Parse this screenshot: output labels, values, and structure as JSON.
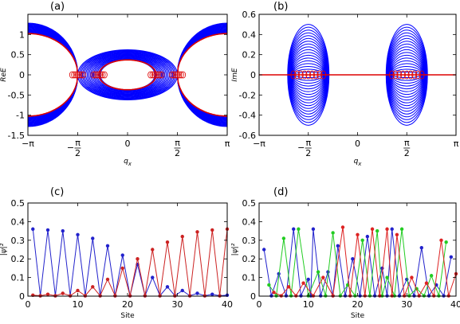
{
  "panels": [
    {
      "label": "(a)",
      "chart_data": {
        "type": "line",
        "title": "",
        "xlabel": "q_x",
        "ylabel": "ReE",
        "xlim": [
          -3.1416,
          3.1416
        ],
        "ylim": [
          -1.5,
          1.5
        ],
        "xticks": [
          {
            "value": -3.1416,
            "label": "−π"
          },
          {
            "value": -1.5708,
            "label": "−π/2"
          },
          {
            "value": 0,
            "label": "0"
          },
          {
            "value": 1.5708,
            "label": "π/2"
          },
          {
            "value": 3.1416,
            "label": "π"
          }
        ],
        "yticks": [
          -1.5,
          -1,
          -0.5,
          0,
          0.5,
          1
        ],
        "description_series": [
          {
            "name": "bands",
            "color": "#0000ff"
          },
          {
            "name": "edge",
            "color": "#dd0000"
          }
        ],
        "curves": {
          "outer_max": 1.28,
          "ring_inner": 0.37,
          "ring_outer": 0.62,
          "exceptional_points": [
            -1.5708,
            1.5708
          ]
        }
      }
    },
    {
      "label": "(b)",
      "chart_data": {
        "type": "line",
        "title": "",
        "xlabel": "q_x",
        "ylabel": "ImE",
        "xlim": [
          -3.1416,
          3.1416
        ],
        "ylim": [
          -0.6,
          0.6
        ],
        "xticks": [
          {
            "value": -3.1416,
            "label": "−π"
          },
          {
            "value": -1.5708,
            "label": "−π/2"
          },
          {
            "value": 0,
            "label": "0"
          },
          {
            "value": 1.5708,
            "label": "π/2"
          },
          {
            "value": 3.1416,
            "label": "π"
          }
        ],
        "yticks": [
          -0.6,
          -0.4,
          -0.2,
          0,
          0.2,
          0.4,
          0.6
        ],
        "curves": {
          "ellipse_centers": [
            -1.5708,
            1.5708
          ],
          "ellipse_halfwidth": 0.66,
          "ellipse_max": 0.5
        }
      }
    },
    {
      "label": "(c)",
      "chart_data": {
        "type": "line",
        "title": "",
        "xlabel": "Site",
        "ylabel": "|ψ|²",
        "xlim": [
          0,
          40
        ],
        "ylim": [
          0,
          0.5
        ],
        "xticks": [
          0,
          10,
          20,
          30,
          40
        ],
        "yticks": [
          0,
          0.1,
          0.2,
          0.3,
          0.4,
          0.5
        ],
        "series": [
          {
            "color": "#2222cc",
            "peaks": [
              [
                1,
                0.36
              ],
              [
                4,
                0.355
              ],
              [
                7,
                0.35
              ],
              [
                10,
                0.33
              ],
              [
                13,
                0.31
              ],
              [
                16,
                0.27
              ],
              [
                19,
                0.22
              ],
              [
                22,
                0.17
              ],
              [
                25,
                0.1
              ],
              [
                28,
                0.05
              ],
              [
                31,
                0.03
              ],
              [
                34,
                0.015
              ],
              [
                37,
                0.01
              ],
              [
                40,
                0.005
              ]
            ]
          },
          {
            "color": "#cc2222",
            "peaks": [
              [
                1,
                0.005
              ],
              [
                4,
                0.01
              ],
              [
                7,
                0.015
              ],
              [
                10,
                0.03
              ],
              [
                13,
                0.05
              ],
              [
                16,
                0.09
              ],
              [
                19,
                0.15
              ],
              [
                22,
                0.2
              ],
              [
                25,
                0.25
              ],
              [
                28,
                0.29
              ],
              [
                31,
                0.32
              ],
              [
                34,
                0.345
              ],
              [
                37,
                0.355
              ],
              [
                40,
                0.36
              ]
            ]
          }
        ]
      }
    },
    {
      "label": "(d)",
      "chart_data": {
        "type": "line",
        "title": "",
        "xlabel": "Site",
        "ylabel": "|ψ|²",
        "xlim": [
          0,
          40
        ],
        "ylim": [
          0,
          0.5
        ],
        "xticks": [
          0,
          10,
          20,
          30,
          40
        ],
        "yticks": [
          0,
          0.1,
          0.2,
          0.3,
          0.4,
          0.5
        ],
        "series": [
          {
            "color": "#2222cc",
            "peaks": [
              [
                1,
                0.25
              ],
              [
                4,
                0.12
              ],
              [
                7,
                0.36
              ],
              [
                10,
                0.09
              ],
              [
                11,
                0.36
              ],
              [
                14,
                0.13
              ],
              [
                16,
                0.27
              ],
              [
                19,
                0.2
              ],
              [
                22,
                0.32
              ],
              [
                25,
                0.15
              ],
              [
                27,
                0.36
              ],
              [
                30,
                0.09
              ],
              [
                33,
                0.26
              ],
              [
                36,
                0.06
              ],
              [
                39,
                0.21
              ]
            ]
          },
          {
            "color": "#22cc22",
            "peaks": [
              [
                2,
                0.06
              ],
              [
                5,
                0.31
              ],
              [
                8,
                0.36
              ],
              [
                12,
                0.13
              ],
              [
                15,
                0.34
              ],
              [
                18,
                0.06
              ],
              [
                21,
                0.3
              ],
              [
                24,
                0.35
              ],
              [
                26,
                0.1
              ],
              [
                29,
                0.36
              ],
              [
                32,
                0.04
              ],
              [
                35,
                0.11
              ],
              [
                38,
                0.29
              ]
            ]
          },
          {
            "color": "#dd2222",
            "peaks": [
              [
                3,
                0.02
              ],
              [
                6,
                0.05
              ],
              [
                9,
                0.07
              ],
              [
                13,
                0.1
              ],
              [
                17,
                0.37
              ],
              [
                20,
                0.33
              ],
              [
                23,
                0.36
              ],
              [
                26,
                0.36
              ],
              [
                28,
                0.33
              ],
              [
                31,
                0.1
              ],
              [
                34,
                0.07
              ],
              [
                37,
                0.3
              ],
              [
                40,
                0.12
              ]
            ]
          }
        ]
      }
    }
  ]
}
